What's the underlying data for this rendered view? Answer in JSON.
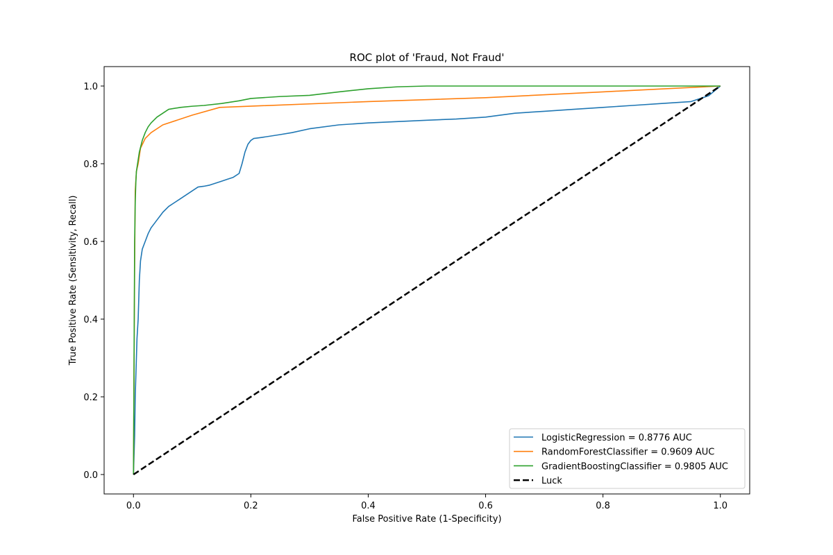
{
  "chart_data": {
    "type": "line",
    "title": "ROC plot of 'Fraud, Not Fraud'",
    "xlabel": "False Positive Rate (1-Specificity)",
    "ylabel": "True Positive Rate (Sensitivity, Recall)",
    "xlim": [
      -0.05,
      1.05
    ],
    "ylim": [
      -0.05,
      1.05
    ],
    "xticks": [
      0.0,
      0.2,
      0.4,
      0.6,
      0.8,
      1.0
    ],
    "yticks": [
      0.0,
      0.2,
      0.4,
      0.6,
      0.8,
      1.0
    ],
    "tick_labels_x": [
      "0.0",
      "0.2",
      "0.4",
      "0.6",
      "0.8",
      "1.0"
    ],
    "tick_labels_y": [
      "0.0",
      "0.2",
      "0.4",
      "0.6",
      "0.8",
      "1.0"
    ],
    "grid": false,
    "legend_position": "bottom-right",
    "series": [
      {
        "name": "LogisticRegression = 0.8776 AUC",
        "color": "#1f77b4",
        "dashed": false,
        "x": [
          0.0,
          0.002,
          0.003,
          0.004,
          0.005,
          0.006,
          0.008,
          0.01,
          0.012,
          0.015,
          0.02,
          0.025,
          0.03,
          0.035,
          0.04,
          0.045,
          0.05,
          0.06,
          0.07,
          0.08,
          0.09,
          0.1,
          0.11,
          0.12,
          0.13,
          0.14,
          0.15,
          0.16,
          0.17,
          0.18,
          0.185,
          0.19,
          0.195,
          0.2,
          0.205,
          0.21,
          0.22,
          0.25,
          0.27,
          0.3,
          0.35,
          0.4,
          0.5,
          0.55,
          0.6,
          0.65,
          0.7,
          0.75,
          0.8,
          0.85,
          0.9,
          0.95,
          0.98,
          1.0
        ],
        "y": [
          0.0,
          0.1,
          0.2,
          0.25,
          0.3,
          0.35,
          0.4,
          0.5,
          0.55,
          0.58,
          0.6,
          0.62,
          0.635,
          0.645,
          0.655,
          0.665,
          0.675,
          0.69,
          0.7,
          0.71,
          0.72,
          0.73,
          0.74,
          0.742,
          0.745,
          0.75,
          0.755,
          0.76,
          0.765,
          0.775,
          0.8,
          0.83,
          0.85,
          0.86,
          0.865,
          0.866,
          0.868,
          0.875,
          0.88,
          0.89,
          0.9,
          0.905,
          0.912,
          0.915,
          0.92,
          0.93,
          0.935,
          0.94,
          0.945,
          0.95,
          0.955,
          0.96,
          0.975,
          1.0
        ]
      },
      {
        "name": "RandomForestClassifier = 0.9609 AUC",
        "color": "#ff7f0e",
        "dashed": false,
        "x": [
          0.0,
          0.002,
          0.003,
          0.005,
          0.008,
          0.012,
          0.02,
          0.03,
          0.05,
          0.1,
          0.147,
          0.4,
          0.6,
          0.8,
          1.0
        ],
        "y": [
          0.0,
          0.54,
          0.73,
          0.78,
          0.8,
          0.84,
          0.865,
          0.88,
          0.9,
          0.925,
          0.945,
          0.96,
          0.97,
          0.985,
          1.0
        ]
      },
      {
        "name": "GradientBoostingClassifier = 0.9805 AUC",
        "color": "#2ca02c",
        "dashed": false,
        "x": [
          0.0,
          0.001,
          0.002,
          0.003,
          0.004,
          0.005,
          0.007,
          0.01,
          0.015,
          0.02,
          0.025,
          0.03,
          0.04,
          0.05,
          0.06,
          0.08,
          0.1,
          0.12,
          0.15,
          0.18,
          0.2,
          0.25,
          0.3,
          0.35,
          0.4,
          0.45,
          0.5,
          1.0
        ],
        "y": [
          0.0,
          0.3,
          0.6,
          0.7,
          0.75,
          0.78,
          0.8,
          0.83,
          0.86,
          0.88,
          0.895,
          0.905,
          0.92,
          0.93,
          0.94,
          0.945,
          0.948,
          0.95,
          0.955,
          0.962,
          0.968,
          0.973,
          0.976,
          0.985,
          0.993,
          0.998,
          1.0,
          1.0
        ]
      },
      {
        "name": "Luck",
        "color": "#000000",
        "dashed": true,
        "x": [
          0.0,
          1.0
        ],
        "y": [
          0.0,
          1.0
        ]
      }
    ]
  }
}
